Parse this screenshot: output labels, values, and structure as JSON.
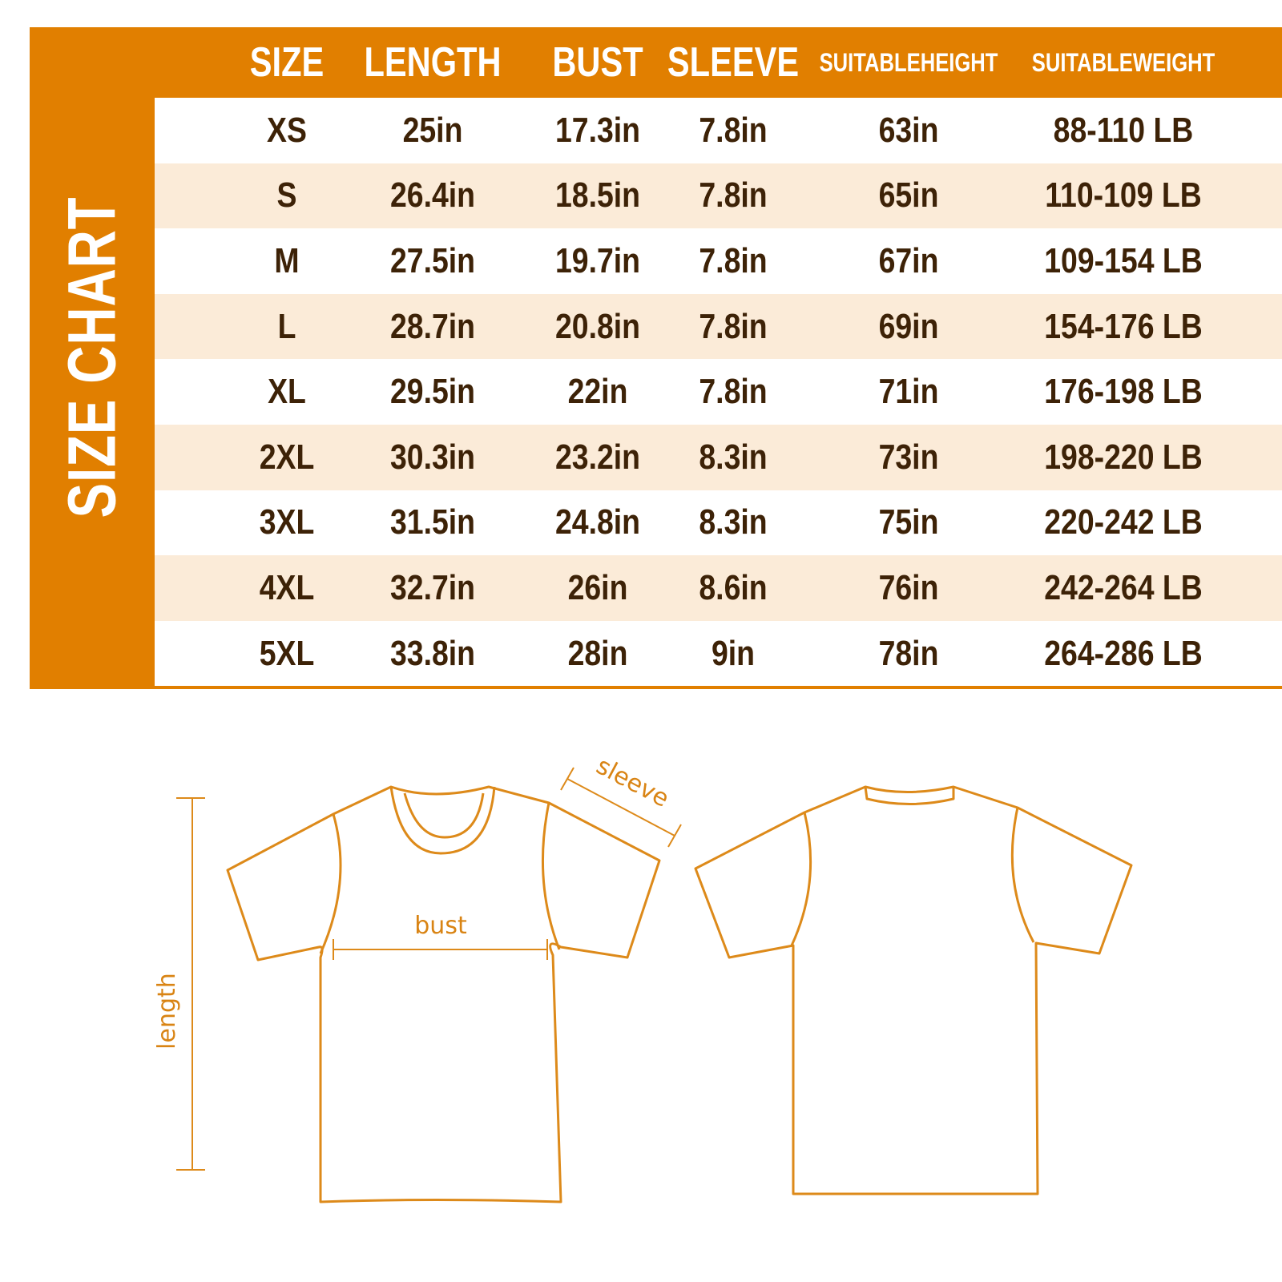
{
  "title": "SIZE CHART",
  "colors": {
    "accent": "#e17f00",
    "row_alt": "#fbebd8",
    "text": "#3d2207",
    "header_text": "#ffffff"
  },
  "columns": [
    {
      "label": "SIZE",
      "lines": [
        "SIZE"
      ]
    },
    {
      "label": "LENGTH",
      "lines": [
        "LENGTH"
      ]
    },
    {
      "label": "BUST",
      "lines": [
        "BUST"
      ]
    },
    {
      "label": "SLEEVE",
      "lines": [
        "SLEEVE"
      ]
    },
    {
      "label": "SUITABLE HEIGHT",
      "lines": [
        "SUITABLE",
        "HEIGHT"
      ]
    },
    {
      "label": "SUITABLE WEIGHT",
      "lines": [
        "SUITABLE",
        "WEIGHT"
      ]
    }
  ],
  "rows": [
    [
      "XS",
      "25in",
      "17.3in",
      "7.8in",
      "63in",
      "88-110 LB"
    ],
    [
      "S",
      "26.4in",
      "18.5in",
      "7.8in",
      "65in",
      "110-109 LB"
    ],
    [
      "M",
      "27.5in",
      "19.7in",
      "7.8in",
      "67in",
      "109-154 LB"
    ],
    [
      "L",
      "28.7in",
      "20.8in",
      "7.8in",
      "69in",
      "154-176 LB"
    ],
    [
      "XL",
      "29.5in",
      "22in",
      "7.8in",
      "71in",
      "176-198 LB"
    ],
    [
      "2XL",
      "30.3in",
      "23.2in",
      "8.3in",
      "73in",
      "198-220 LB"
    ],
    [
      "3XL",
      "31.5in",
      "24.8in",
      "8.3in",
      "75in",
      "220-242 LB"
    ],
    [
      "4XL",
      "32.7in",
      "26in",
      "8.6in",
      "76in",
      "242-264 LB"
    ],
    [
      "5XL",
      "33.8in",
      "28in",
      "9in",
      "78in",
      "264-286 LB"
    ]
  ],
  "diagram": {
    "length_label": "length",
    "bust_label": "bust",
    "sleeve_label": "sleeve"
  },
  "chart_data": {
    "type": "table",
    "title": "SIZE CHART",
    "columns": [
      "SIZE",
      "LENGTH",
      "BUST",
      "SLEEVE",
      "SUITABLE HEIGHT",
      "SUITABLE WEIGHT"
    ]
  }
}
